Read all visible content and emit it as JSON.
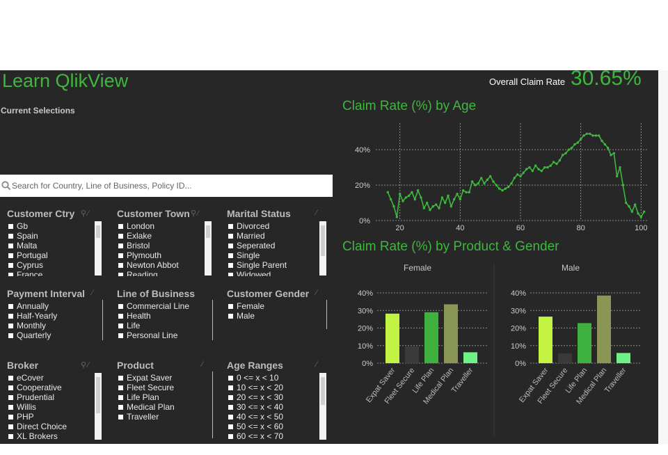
{
  "app": {
    "title": "Learn QlikView"
  },
  "kpi": {
    "label": "Overall Claim Rate",
    "value": "30.65%"
  },
  "current_selections": {
    "label": "Current Selections"
  },
  "search": {
    "placeholder": "Search for Country, Line of Business, Policy ID..."
  },
  "listboxes": [
    {
      "title": "Customer Ctry",
      "items": [
        "Gb",
        "Spain",
        "Malta",
        "Portugal",
        "Cyprus",
        "France"
      ]
    },
    {
      "title": "Customer Town",
      "items": [
        "London",
        "Exlake",
        "Bristol",
        "Plymouth",
        "Newton Abbot",
        "Reading"
      ]
    },
    {
      "title": "Marital Status",
      "items": [
        "Divorced",
        "Married",
        "Seperated",
        "Single",
        "Single Parent",
        "Widowed"
      ]
    },
    {
      "title": "Payment Interval",
      "items": [
        "Annually",
        "Half-Yearly",
        "Monthly",
        "Quarterly"
      ]
    },
    {
      "title": "Line of Business",
      "items": [
        "Commercial Line",
        "Health",
        "Life",
        "Personal Line"
      ]
    },
    {
      "title": "Customer Gender",
      "items": [
        "Female",
        "Male"
      ]
    },
    {
      "title": "Broker",
      "items": [
        "eCover",
        "Cooperative",
        "Prudential",
        "Willis",
        "PHP",
        "Direct Choice",
        "XL Brokers"
      ]
    },
    {
      "title": "Product",
      "items": [
        "Expat Saver",
        "Fleet Secure",
        "Life Plan",
        "Medical Plan",
        "Traveller"
      ]
    },
    {
      "title": "Age Ranges",
      "items": [
        "0 <= x < 10",
        "10 <= x < 20",
        "20 <= x < 30",
        "30 <= x < 40",
        "40 <= x < 50",
        "50 <= x < 60",
        "60 <= x < 70"
      ]
    }
  ],
  "colors": {
    "accent": "#3fb63f",
    "background": "#272727"
  },
  "chart_data": [
    {
      "type": "line",
      "title": "Claim Rate (%) by Age",
      "xlabel": "Age",
      "ylabel": "Claim Rate (%)",
      "xlim": [
        12,
        102
      ],
      "ylim": [
        0,
        55
      ],
      "x_ticks": [
        20,
        40,
        60,
        80,
        100
      ],
      "y_ticks": [
        0,
        20,
        40
      ],
      "y_tick_labels": [
        "0%",
        "20%",
        "40%"
      ],
      "x": [
        16,
        17,
        18,
        19,
        20,
        21,
        22,
        23,
        24,
        25,
        26,
        27,
        28,
        29,
        30,
        31,
        32,
        33,
        34,
        35,
        36,
        37,
        38,
        39,
        40,
        41,
        42,
        43,
        44,
        45,
        46,
        47,
        48,
        49,
        50,
        51,
        52,
        53,
        54,
        55,
        56,
        57,
        58,
        59,
        60,
        61,
        62,
        63,
        64,
        65,
        66,
        67,
        68,
        69,
        70,
        71,
        72,
        73,
        74,
        75,
        76,
        77,
        78,
        79,
        80,
        81,
        82,
        83,
        84,
        85,
        86,
        87,
        88,
        89,
        90,
        91,
        92,
        93,
        94,
        95,
        96,
        97,
        98,
        99,
        100,
        101
      ],
      "values": [
        16,
        12,
        8,
        2,
        15,
        11,
        13,
        14,
        16,
        12,
        17,
        13,
        7,
        10,
        6,
        8,
        9,
        7,
        13,
        10,
        14,
        8,
        12,
        15,
        12,
        17,
        16,
        16,
        22,
        20,
        21,
        24,
        21,
        23,
        25,
        22,
        20,
        18,
        17,
        18,
        19,
        21,
        24,
        26,
        25,
        27,
        29,
        30,
        28,
        31,
        29,
        28,
        30,
        30,
        31,
        33,
        32,
        34,
        37,
        38,
        40,
        41,
        43,
        44,
        46,
        48,
        49,
        49,
        48,
        48,
        48,
        45,
        43,
        41,
        37,
        38,
        25,
        30,
        20,
        10,
        8,
        5,
        9,
        4,
        2,
        5
      ],
      "series": [
        {
          "name": "Claim Rate",
          "color": "#3fb63f"
        }
      ]
    },
    {
      "type": "bar",
      "title": "Claim Rate (%) by Product & Gender",
      "ylabel": "Claim Rate (%)",
      "ylim": [
        0,
        40
      ],
      "y_ticks": [
        0,
        10,
        20,
        30,
        40
      ],
      "y_tick_labels": [
        "0%",
        "10%",
        "20%",
        "30%",
        "40%"
      ],
      "categories": [
        "Expat Saver",
        "Fleet Secure",
        "Life Plan",
        "Medical Plan",
        "Traveller"
      ],
      "category_colors": [
        "#c2f242",
        "#3a3a3a",
        "#3eb13e",
        "#8a9656",
        "#6ef286"
      ],
      "panels": [
        {
          "name": "Female",
          "values": [
            28.2,
            9.5,
            29,
            33.5,
            6.2
          ]
        },
        {
          "name": "Male",
          "values": [
            26.5,
            5.5,
            22.8,
            38.5,
            5.8
          ]
        }
      ]
    }
  ]
}
